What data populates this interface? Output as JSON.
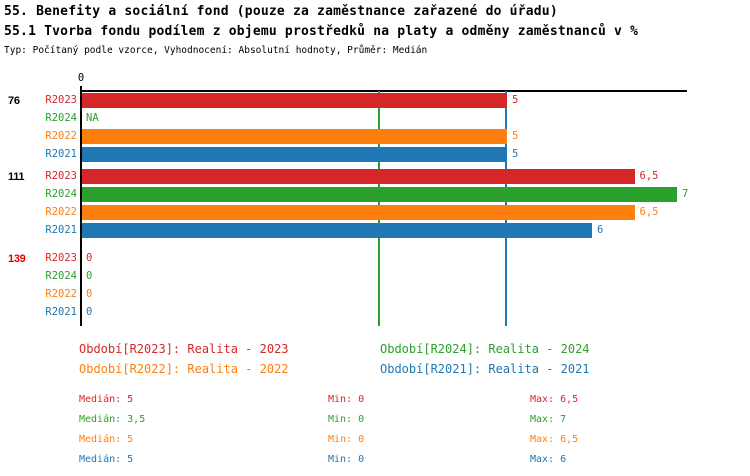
{
  "header": {
    "title_line1": "55. Benefity a sociální fond (pouze za zaměstnance zařazené do úřadu)",
    "title_line2": "55.1 Tvorba fondu podílem z objemu prostředků na platy a odměny zaměstnanců v %",
    "meta": "Typ: Počítaný podle vzorce, Vyhodnocení: Absolutní hodnoty, Průměr: Medián"
  },
  "colors": {
    "R2023": "#d62728",
    "R2024": "#2ca02c",
    "R2022": "#ff7f0e",
    "R2021": "#1f77b4",
    "axis": "#000000",
    "group_label_default": "#000000",
    "group_label_highlight": "#e60000"
  },
  "chart_data": {
    "type": "bar",
    "orientation": "horizontal",
    "value_unit": "%",
    "x_axis": {
      "tick_labels": [
        "0"
      ],
      "range": [
        0,
        7.1
      ],
      "grid": false
    },
    "series": [
      {
        "id": "R2023",
        "label": "R2023",
        "legend": "Období[R2023]: Realita - 2023"
      },
      {
        "id": "R2024",
        "label": "R2024",
        "legend": "Období[R2024]: Realita - 2024"
      },
      {
        "id": "R2022",
        "label": "R2022",
        "legend": "Období[R2022]: Realita - 2022"
      },
      {
        "id": "R2021",
        "label": "R2021",
        "legend": "Období[R2021]: Realita - 2021"
      }
    ],
    "groups": [
      {
        "label": "76",
        "highlighted": false,
        "bars": [
          {
            "series": "R2023",
            "value": 5,
            "display": "5"
          },
          {
            "series": "R2024",
            "value": null,
            "display": "NA"
          },
          {
            "series": "R2022",
            "value": 5,
            "display": "5"
          },
          {
            "series": "R2021",
            "value": 5,
            "display": "5"
          }
        ]
      },
      {
        "label": "111",
        "highlighted": false,
        "bars": [
          {
            "series": "R2023",
            "value": 6.5,
            "display": "6,5"
          },
          {
            "series": "R2024",
            "value": 7,
            "display": "7"
          },
          {
            "series": "R2022",
            "value": 6.5,
            "display": "6,5"
          },
          {
            "series": "R2021",
            "value": 6,
            "display": "6"
          }
        ]
      },
      {
        "label": "139",
        "highlighted": true,
        "bars": [
          {
            "series": "R2023",
            "value": 0,
            "display": "0"
          },
          {
            "series": "R2024",
            "value": 0,
            "display": "0"
          },
          {
            "series": "R2022",
            "value": 0,
            "display": "0"
          },
          {
            "series": "R2021",
            "value": 0,
            "display": "0"
          }
        ]
      }
    ],
    "reference_lines": [
      {
        "series": "R2024",
        "value": 3.5
      },
      {
        "series": "R2021",
        "value": 5
      }
    ]
  },
  "legend": [
    {
      "series": "R2023",
      "text": "Období[R2023]: Realita - 2023"
    },
    {
      "series": "R2024",
      "text": "Období[R2024]: Realita - 2024"
    },
    {
      "series": "R2022",
      "text": "Období[R2022]: Realita - 2022"
    },
    {
      "series": "R2021",
      "text": "Období[R2021]: Realita - 2021"
    }
  ],
  "stats": [
    {
      "series": "R2023",
      "median": "Medián: 5",
      "min": "Min: 0",
      "max": "Max: 6,5"
    },
    {
      "series": "R2024",
      "median": "Medián: 3,5",
      "min": "Min: 0",
      "max": "Max: 7"
    },
    {
      "series": "R2022",
      "median": "Medián: 5",
      "min": "Min: 0",
      "max": "Max: 6,5"
    },
    {
      "series": "R2021",
      "median": "Medián: 5",
      "min": "Min: 0",
      "max": "Max: 6"
    }
  ]
}
